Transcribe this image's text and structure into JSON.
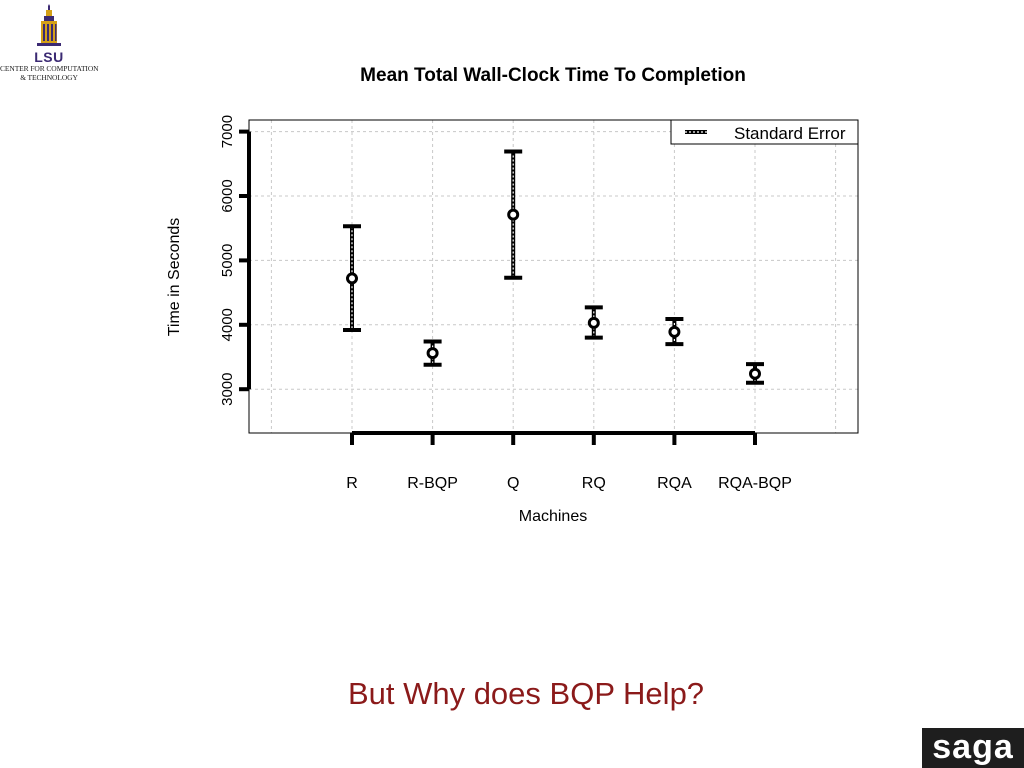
{
  "logo": {
    "wordmark": "LSU",
    "line1": "CENTER FOR COMPUTATION",
    "line2": "& TECHNOLOGY"
  },
  "caption": "But Why does BQP Help?",
  "brand": "saga",
  "colors": {
    "caption": "#8b1a1a",
    "brand_bg": "#1e1e1e",
    "logo_gold": "#d4a017",
    "logo_purple": "#3b2a73"
  },
  "chart_data": {
    "type": "scatter",
    "title": "Mean Total Wall-Clock Time To Completion",
    "xlabel": "Machines",
    "ylabel": "Time in Seconds",
    "categories": [
      "R",
      "R-BQP",
      "Q",
      "RQ",
      "RQA",
      "RQA-BQP"
    ],
    "series": [
      {
        "name": "Standard Error",
        "values": [
          4720,
          3560,
          5710,
          4030,
          3890,
          3240
        ],
        "lower": [
          3920,
          3380,
          4730,
          3800,
          3700,
          3100
        ],
        "upper": [
          5530,
          3740,
          6690,
          4270,
          4090,
          3390
        ]
      }
    ],
    "yticks": [
      3000,
      4000,
      5000,
      6000,
      7000
    ],
    "ylim": [
      2320,
      7180
    ],
    "grid": true,
    "legend": "top-right"
  }
}
